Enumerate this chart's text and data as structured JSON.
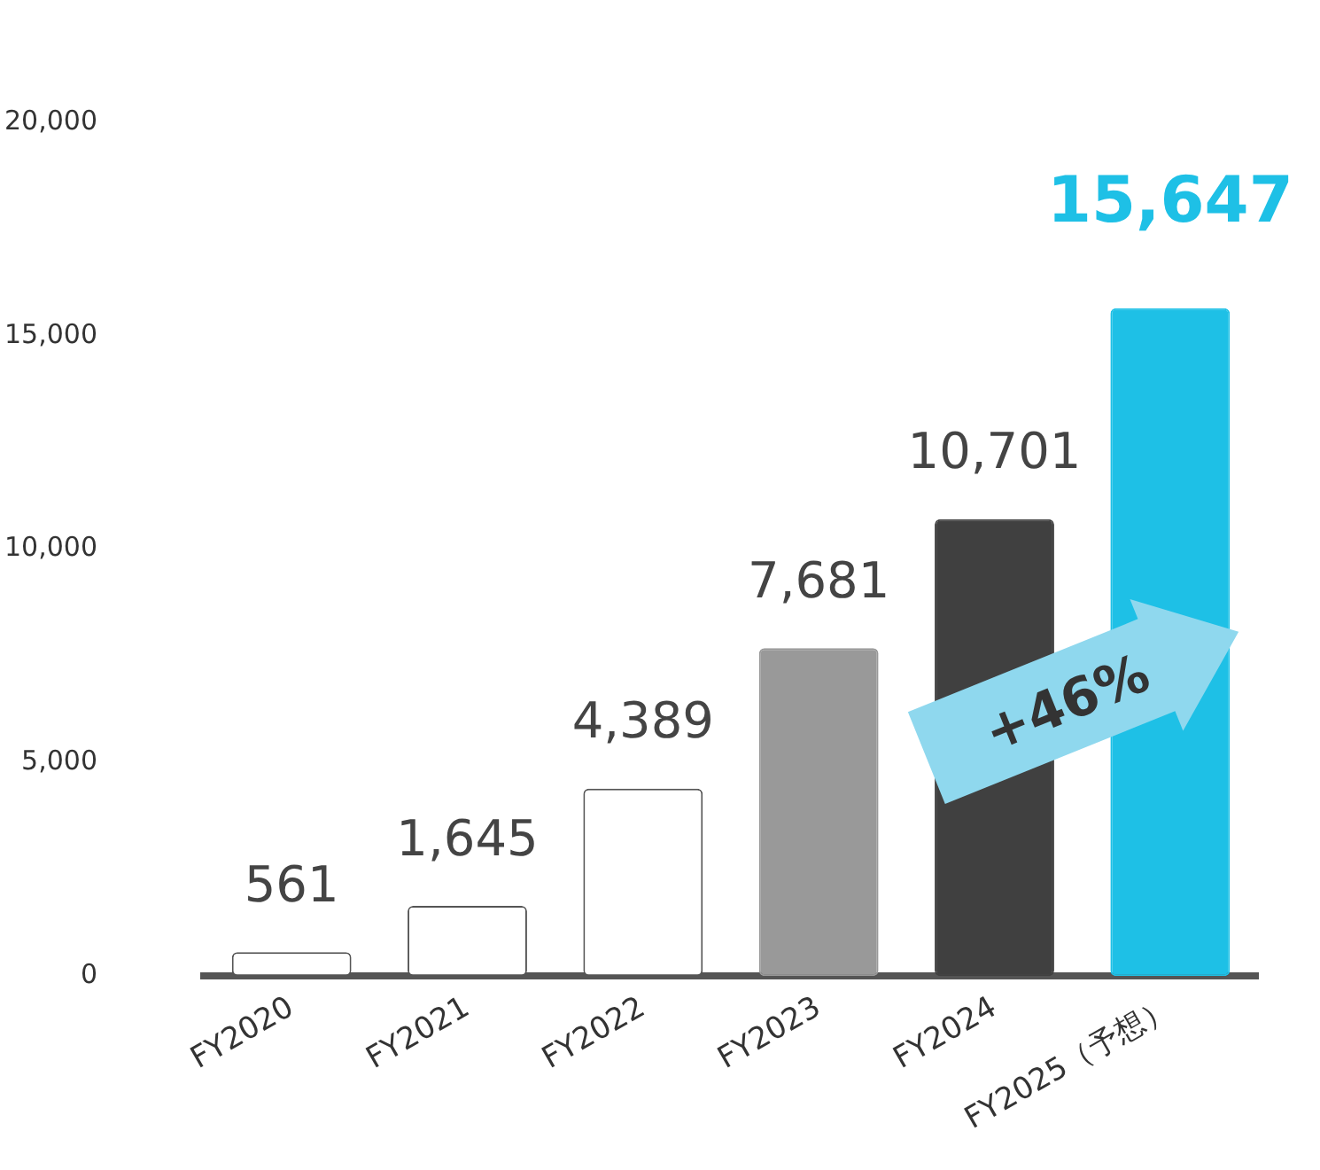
{
  "chart_data": {
    "type": "bar",
    "categories": [
      "FY2020",
      "FY2021",
      "FY2022",
      "FY2023",
      "FY2024",
      "FY2025（予想）"
    ],
    "values": [
      561,
      1645,
      4389,
      7681,
      10701,
      15647
    ],
    "value_labels": [
      "561",
      "1,645",
      "4,389",
      "7,681",
      "10,701",
      "15,647"
    ],
    "colors": [
      "#ffffff",
      "#ffffff",
      "#ffffff",
      "#999999",
      "#404040",
      "#1ec0e6"
    ],
    "ylim": [
      0,
      20000
    ],
    "yticks": [
      0,
      {
        "value": 5000,
        "label": "5,000"
      },
      {
        "value": 10000,
        "label": "10,000"
      },
      {
        "value": 15000,
        "label": "15,000"
      },
      {
        "value": 20000,
        "label": "20,000"
      }
    ],
    "annotations": [
      "+46%"
    ],
    "grid": false,
    "legend": false
  }
}
